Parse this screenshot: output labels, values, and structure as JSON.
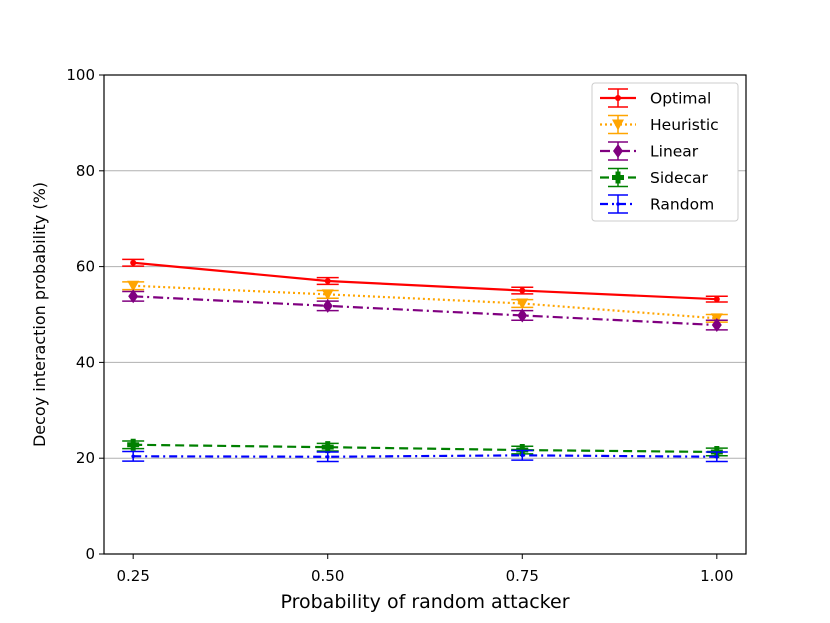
{
  "chart_data": {
    "type": "line",
    "title": "",
    "xlabel": "Probability of random attacker",
    "ylabel": "Decoy interaction probability (%)",
    "x": [
      0.25,
      0.5,
      0.75,
      1.0
    ],
    "x_tick_labels": [
      "0.25",
      "0.50",
      "0.75",
      "1.00"
    ],
    "ylim": [
      0,
      100
    ],
    "y_ticks": [
      0,
      20,
      40,
      60,
      80,
      100
    ],
    "y_tick_labels": [
      "0",
      "20",
      "40",
      "60",
      "80",
      "100"
    ],
    "grid": "horizontal",
    "legend_position": "top-right",
    "series": [
      {
        "name": "Optimal",
        "color": "#ff0000",
        "dash": "solid",
        "marker": "circle",
        "values": [
          60.8,
          57.0,
          55.0,
          53.2
        ],
        "errors": [
          0.7,
          0.7,
          0.7,
          0.6
        ]
      },
      {
        "name": "Heuristic",
        "color": "#ffa500",
        "dash": "dotted",
        "marker": "triangle-down",
        "values": [
          56.0,
          54.2,
          52.3,
          49.2
        ],
        "errors": [
          0.8,
          0.8,
          0.8,
          0.8
        ]
      },
      {
        "name": "Linear",
        "color": "#800080",
        "dash": "dashdot",
        "marker": "diamond",
        "values": [
          53.8,
          51.8,
          49.8,
          47.8
        ],
        "errors": [
          1.0,
          1.0,
          1.0,
          1.0
        ]
      },
      {
        "name": "Sidecar",
        "color": "#008000",
        "dash": "dashed",
        "marker": "plus",
        "values": [
          22.8,
          22.3,
          21.7,
          21.3
        ],
        "errors": [
          0.8,
          0.8,
          0.8,
          0.8
        ]
      },
      {
        "name": "Random",
        "color": "#0000ff",
        "dash": "dashdot2",
        "marker": "point",
        "values": [
          20.4,
          20.3,
          20.6,
          20.3
        ],
        "errors": [
          1.0,
          1.0,
          1.0,
          1.0
        ]
      }
    ]
  }
}
